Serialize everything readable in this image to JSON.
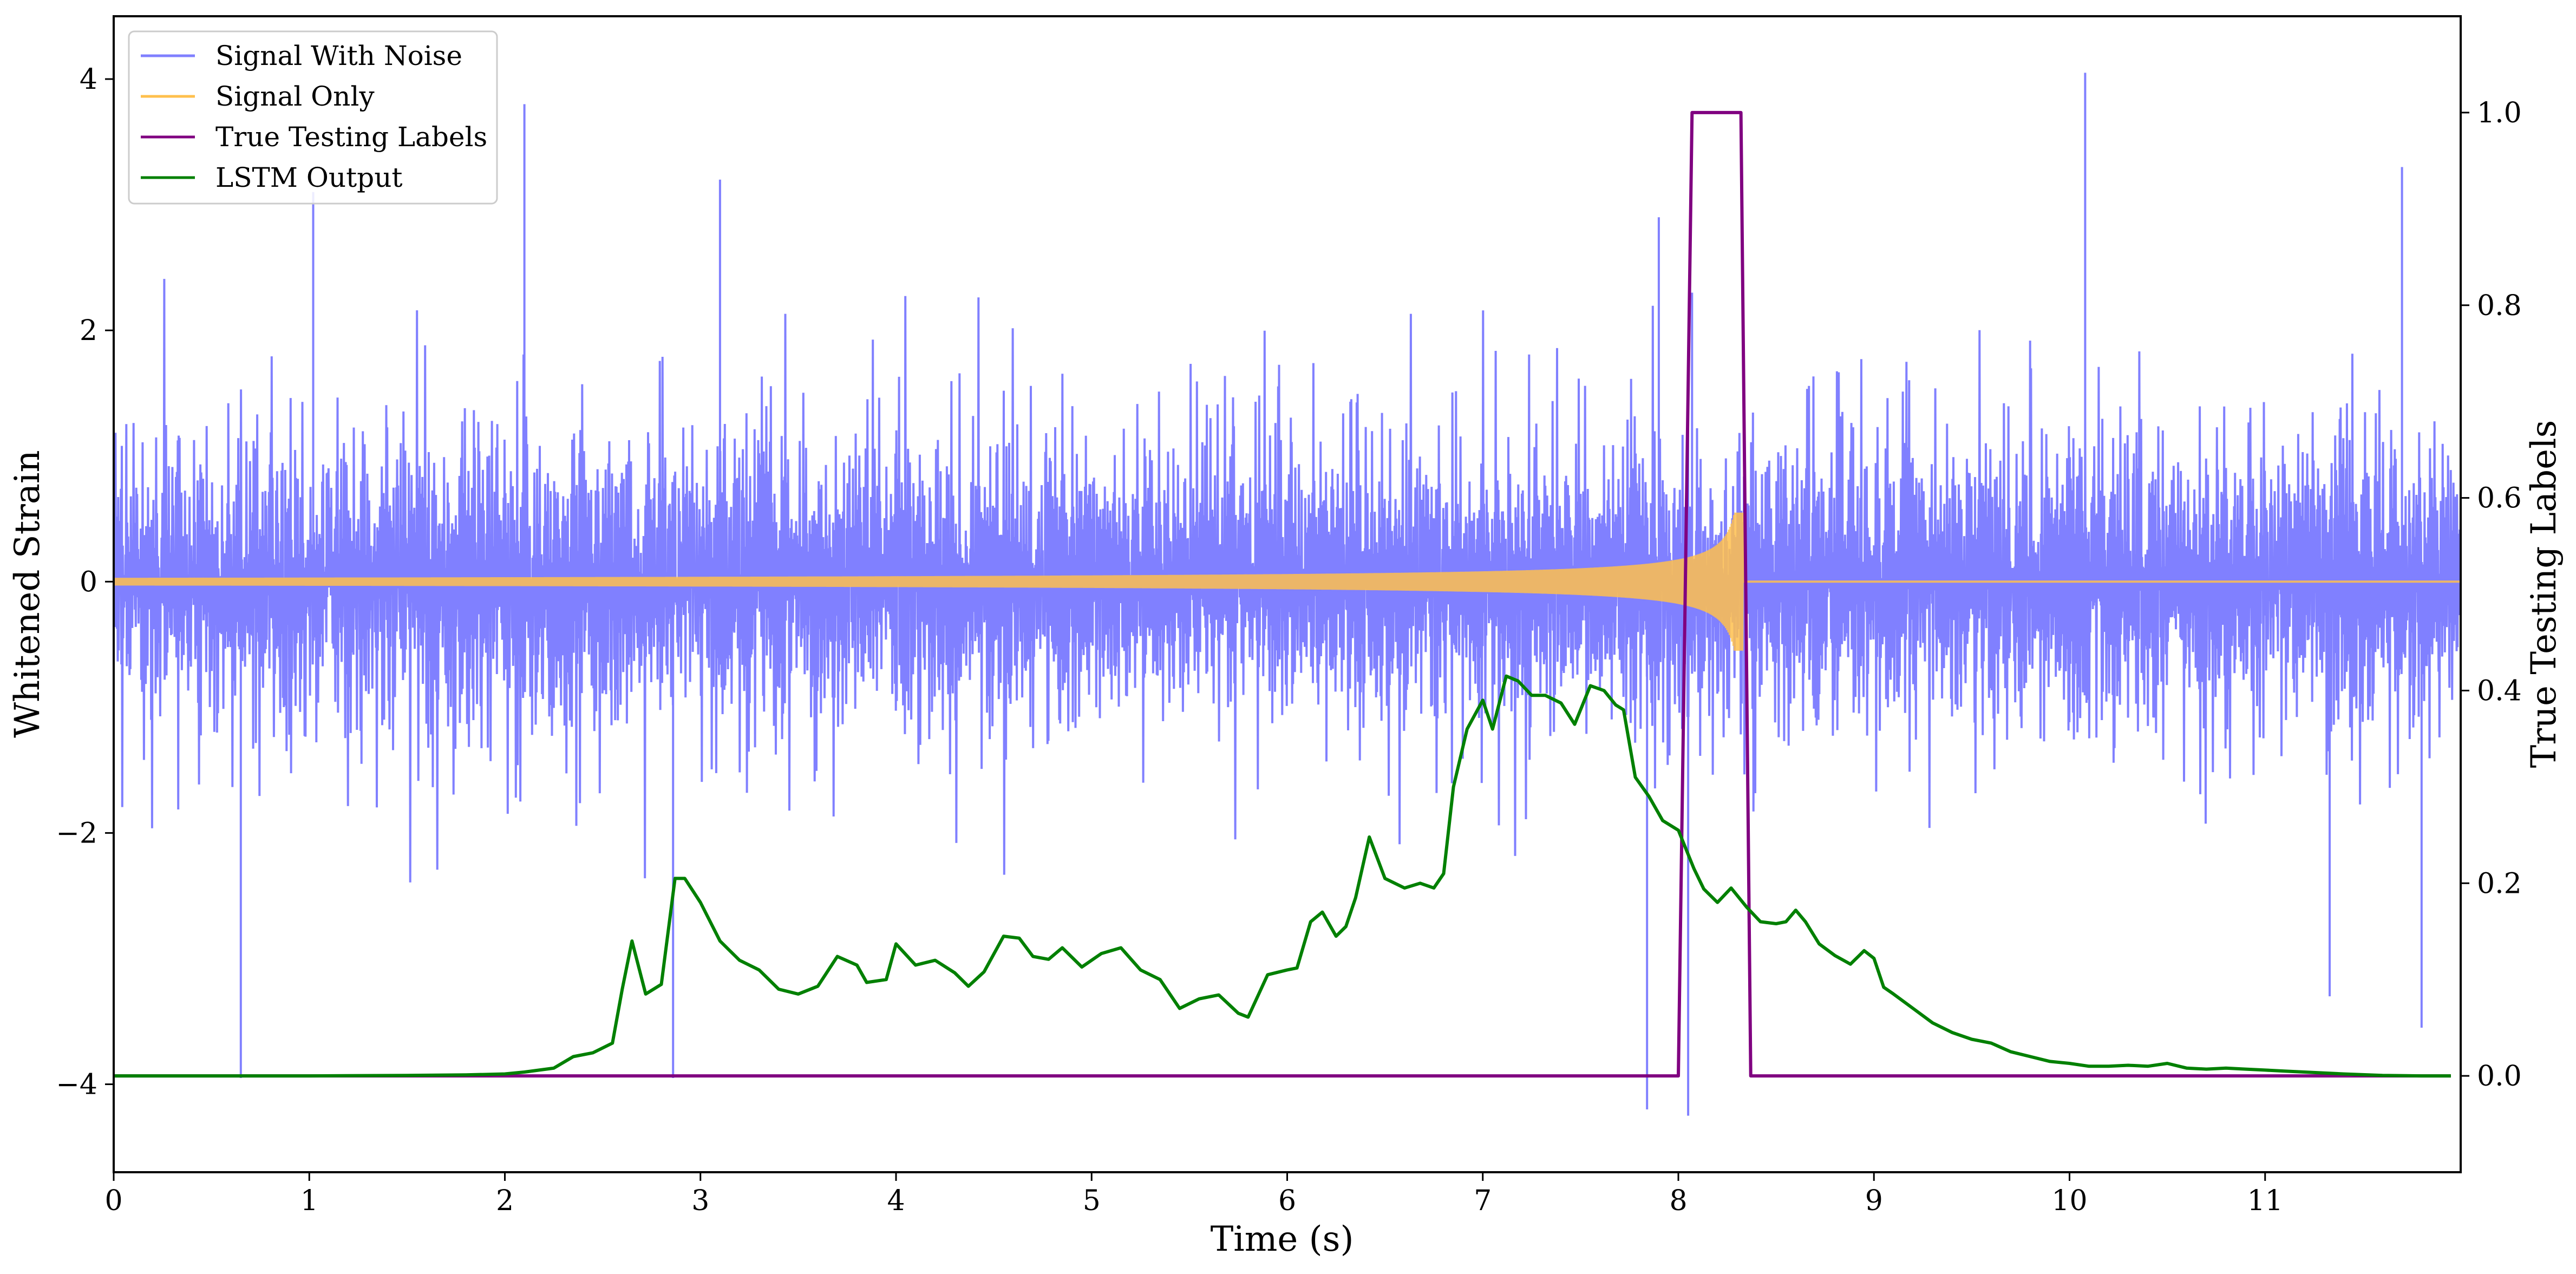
{
  "chart_data": {
    "type": "line",
    "title": "",
    "xlabel": "Time (s)",
    "ylabel": "Whitened Strain",
    "ylabel_right": "True Testing Labels",
    "xlim": [
      0,
      12.0
    ],
    "ylim": [
      -4.7,
      4.5
    ],
    "ylim_right": [
      -0.1,
      1.1
    ],
    "x_ticks": [
      0,
      1,
      2,
      3,
      4,
      5,
      6,
      7,
      8,
      9,
      10,
      11
    ],
    "x_tick_labels": [
      "0",
      "1",
      "2",
      "3",
      "4",
      "5",
      "6",
      "7",
      "8",
      "9",
      "10",
      "11"
    ],
    "y_ticks": [
      -4,
      -2,
      0,
      2,
      4
    ],
    "y_tick_labels": [
      "−4",
      "−2",
      "0",
      "2",
      "4"
    ],
    "y2_ticks": [
      0.0,
      0.2,
      0.4,
      0.6,
      0.8,
      1.0
    ],
    "y2_tick_labels": [
      "0.0",
      "0.2",
      "0.4",
      "0.6",
      "0.8",
      "1.0"
    ],
    "grid": false,
    "legend_position": "upper-left",
    "series": [
      {
        "name": "Signal With Noise",
        "axis": "left",
        "color": "#8080ff",
        "kind": "noise",
        "x_range": [
          0,
          12.0
        ],
        "typical_amplitude": 1.6,
        "peaks": [
          {
            "x": 0.65,
            "y": -3.95
          },
          {
            "x": 1.02,
            "y": 3.1
          },
          {
            "x": 2.1,
            "y": 3.8
          },
          {
            "x": 2.86,
            "y": -3.95
          },
          {
            "x": 3.1,
            "y": 3.2
          },
          {
            "x": 7.84,
            "y": -4.2
          },
          {
            "x": 7.9,
            "y": 2.9
          },
          {
            "x": 8.05,
            "y": -4.25
          },
          {
            "x": 8.07,
            "y": 2.3
          },
          {
            "x": 10.08,
            "y": 4.05
          },
          {
            "x": 11.7,
            "y": 3.3
          },
          {
            "x": 11.8,
            "y": -3.55
          },
          {
            "x": 11.33,
            "y": -3.3
          }
        ]
      },
      {
        "name": "Signal Only",
        "axis": "left",
        "color": "#ffc04d",
        "kind": "chirp",
        "x_range": [
          0,
          8.33
        ],
        "start_amplitude": 0.03,
        "peak_amplitude": 0.55,
        "merger_time": 8.33,
        "after_merger_value": 0
      },
      {
        "name": "True Testing Labels",
        "axis": "right",
        "color": "#800080",
        "x": [
          0,
          8.0,
          8.07,
          8.32,
          8.37,
          11.95
        ],
        "y": [
          0,
          0,
          1,
          1,
          0,
          0
        ]
      },
      {
        "name": "LSTM Output",
        "axis": "right",
        "color": "#008000",
        "x": [
          0,
          1.0,
          1.5,
          1.8,
          2.0,
          2.1,
          2.25,
          2.35,
          2.45,
          2.55,
          2.6,
          2.65,
          2.72,
          2.8,
          2.87,
          2.92,
          3.0,
          3.1,
          3.2,
          3.3,
          3.4,
          3.5,
          3.6,
          3.7,
          3.8,
          3.85,
          3.95,
          4.0,
          4.1,
          4.2,
          4.3,
          4.37,
          4.45,
          4.55,
          4.63,
          4.7,
          4.78,
          4.85,
          4.95,
          5.05,
          5.15,
          5.25,
          5.35,
          5.45,
          5.55,
          5.65,
          5.75,
          5.8,
          5.9,
          6.0,
          6.05,
          6.12,
          6.18,
          6.25,
          6.3,
          6.35,
          6.42,
          6.5,
          6.6,
          6.68,
          6.75,
          6.8,
          6.85,
          6.92,
          7.0,
          7.05,
          7.12,
          7.18,
          7.25,
          7.32,
          7.4,
          7.47,
          7.55,
          7.62,
          7.68,
          7.72,
          7.78,
          7.85,
          7.92,
          8.0,
          8.08,
          8.13,
          8.2,
          8.27,
          8.35,
          8.42,
          8.5,
          8.55,
          8.6,
          8.65,
          8.72,
          8.8,
          8.88,
          8.95,
          9.0,
          9.05,
          9.1,
          9.2,
          9.3,
          9.4,
          9.5,
          9.6,
          9.7,
          9.8,
          9.9,
          10.0,
          10.1,
          10.2,
          10.3,
          10.4,
          10.5,
          10.6,
          10.7,
          10.8,
          10.9,
          11.0,
          11.1,
          11.2,
          11.4,
          11.6,
          11.8,
          11.95
        ],
        "y": [
          0,
          0.0,
          0.0005,
          0.001,
          0.002,
          0.004,
          0.008,
          0.02,
          0.024,
          0.034,
          0.09,
          0.14,
          0.085,
          0.095,
          0.205,
          0.205,
          0.18,
          0.14,
          0.12,
          0.11,
          0.09,
          0.085,
          0.093,
          0.124,
          0.115,
          0.097,
          0.1,
          0.137,
          0.115,
          0.12,
          0.107,
          0.093,
          0.108,
          0.145,
          0.143,
          0.124,
          0.121,
          0.133,
          0.113,
          0.127,
          0.133,
          0.11,
          0.1,
          0.07,
          0.08,
          0.084,
          0.065,
          0.061,
          0.105,
          0.11,
          0.112,
          0.16,
          0.17,
          0.145,
          0.155,
          0.185,
          0.248,
          0.205,
          0.195,
          0.2,
          0.195,
          0.21,
          0.3,
          0.36,
          0.39,
          0.36,
          0.415,
          0.41,
          0.395,
          0.395,
          0.387,
          0.365,
          0.405,
          0.4,
          0.385,
          0.38,
          0.31,
          0.29,
          0.265,
          0.255,
          0.215,
          0.194,
          0.18,
          0.195,
          0.175,
          0.16,
          0.158,
          0.16,
          0.172,
          0.16,
          0.137,
          0.125,
          0.116,
          0.13,
          0.122,
          0.092,
          0.085,
          0.07,
          0.055,
          0.045,
          0.038,
          0.034,
          0.025,
          0.02,
          0.015,
          0.013,
          0.01,
          0.01,
          0.011,
          0.01,
          0.013,
          0.008,
          0.007,
          0.008,
          0.007,
          0.006,
          0.005,
          0.004,
          0.002,
          0.0005,
          0.0,
          0
        ]
      }
    ]
  }
}
